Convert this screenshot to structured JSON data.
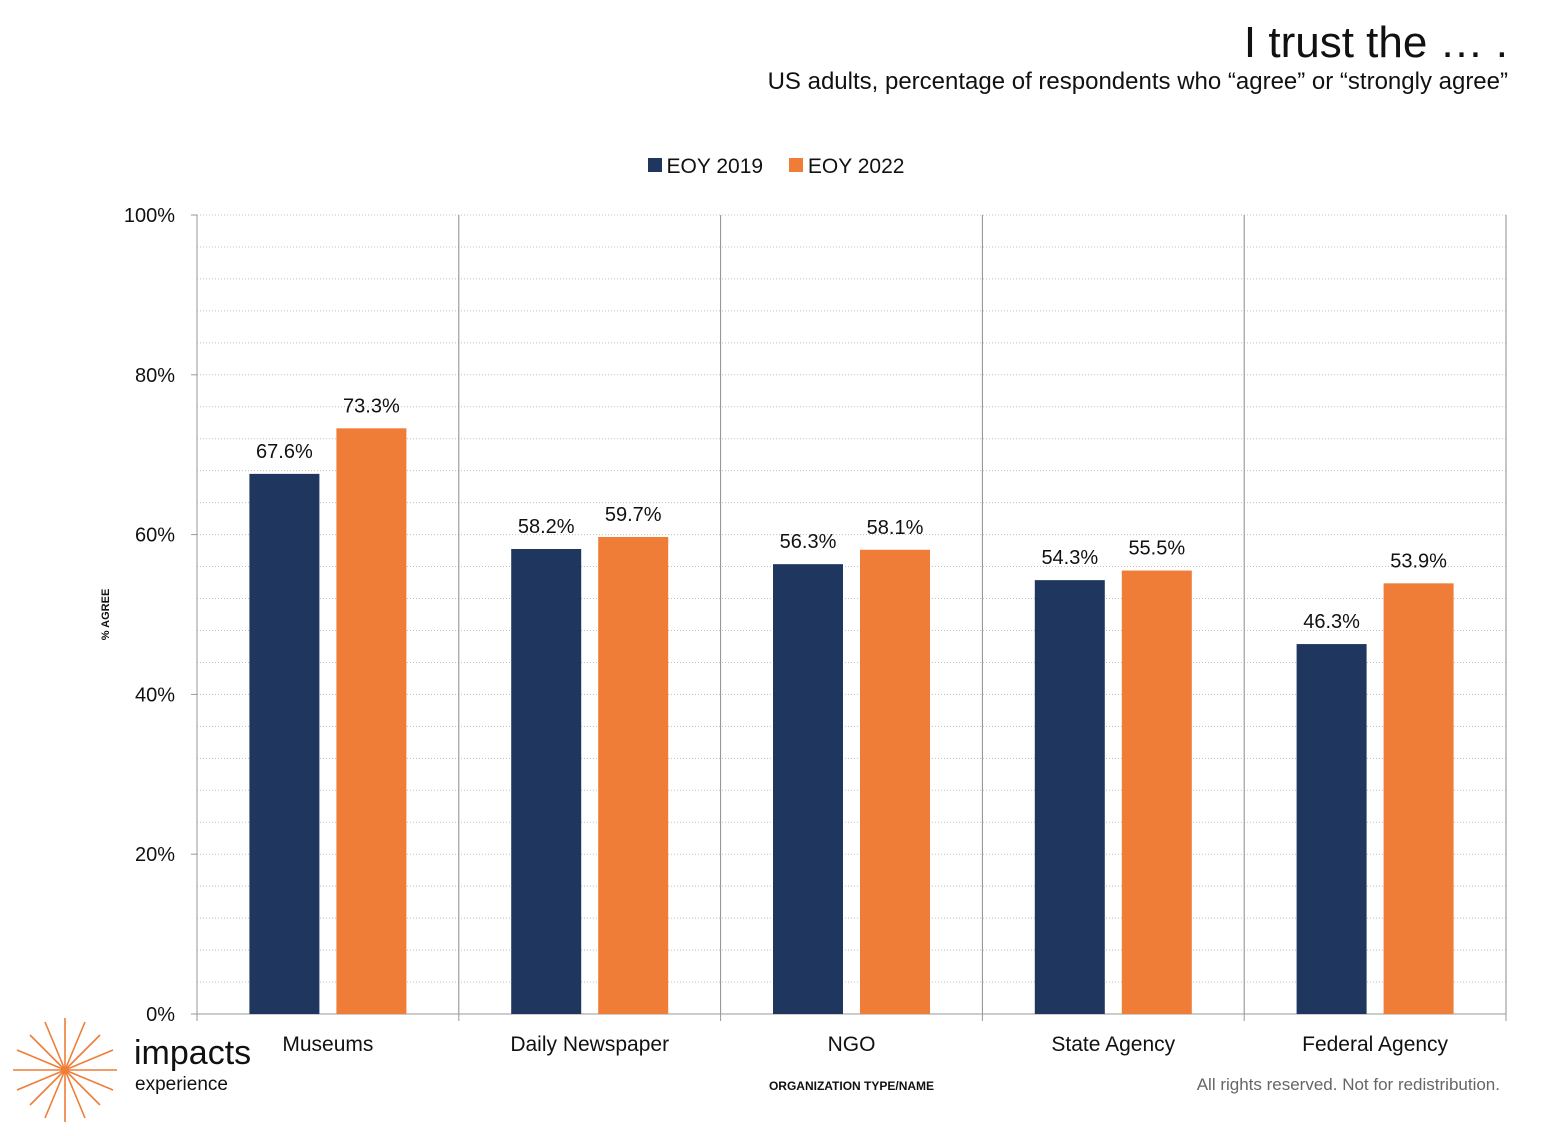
{
  "title": "I trust the … .",
  "subtitle": "US adults, percentage of respondents who “agree” or “strongly agree”",
  "footer": "All rights reserved. Not for redistribution.",
  "logo": {
    "main": "impacts",
    "sub": "experience"
  },
  "colors": {
    "series_2019": "#1f365e",
    "series_2022": "#ef7d38",
    "grid": "#bfbfbf",
    "axis": "#999999"
  },
  "chart_data": {
    "type": "bar",
    "title": "I trust the … .",
    "subtitle": "US adults, percentage of respondents who “agree” or “strongly agree”",
    "xlabel": "ORGANIZATION TYPE/NAME",
    "ylabel": "% AGREE",
    "ylim": [
      0,
      100
    ],
    "yticks": [
      0,
      20,
      40,
      60,
      80,
      100
    ],
    "ytick_labels": [
      "0%",
      "20%",
      "40%",
      "60%",
      "80%",
      "100%"
    ],
    "grid": true,
    "legend_position": "top-center",
    "categories": [
      "Museums",
      "Daily Newspaper",
      "NGO",
      "State Agency",
      "Federal Agency"
    ],
    "series": [
      {
        "name": "EOY 2019",
        "color": "#1f365e",
        "values": [
          67.6,
          58.2,
          56.3,
          54.3,
          46.3
        ],
        "labels": [
          "67.6%",
          "58.2%",
          "56.3%",
          "54.3%",
          "46.3%"
        ]
      },
      {
        "name": "EOY 2022",
        "color": "#ef7d38",
        "values": [
          73.3,
          59.7,
          58.1,
          55.5,
          53.9
        ],
        "labels": [
          "73.3%",
          "59.7%",
          "58.1%",
          "55.5%",
          "53.9%"
        ]
      }
    ]
  }
}
